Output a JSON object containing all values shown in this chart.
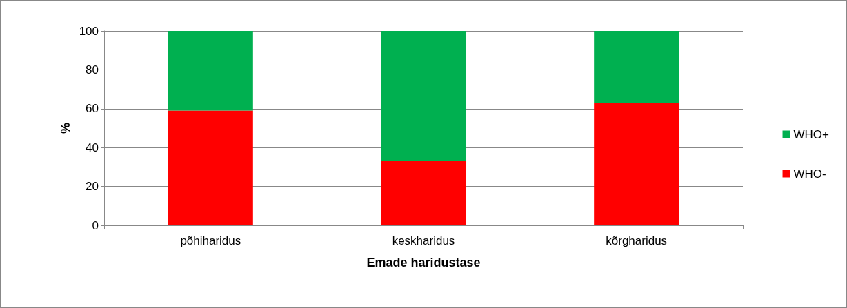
{
  "chart_data": {
    "type": "bar",
    "stacked": true,
    "xlabel": "Emade haridustase",
    "ylabel": "%",
    "categories": [
      "põhiharidus",
      "keskharidus",
      "kõrgharidus"
    ],
    "series": [
      {
        "name": "WHO-",
        "color": "#ff0000",
        "values": [
          59,
          33,
          63
        ]
      },
      {
        "name": "WHO+",
        "color": "#00b050",
        "values": [
          41,
          67,
          37
        ]
      }
    ],
    "ylim": [
      0,
      100
    ],
    "yticks": [
      0,
      20,
      40,
      60,
      80,
      100
    ],
    "grid": "y",
    "legend": "right"
  }
}
